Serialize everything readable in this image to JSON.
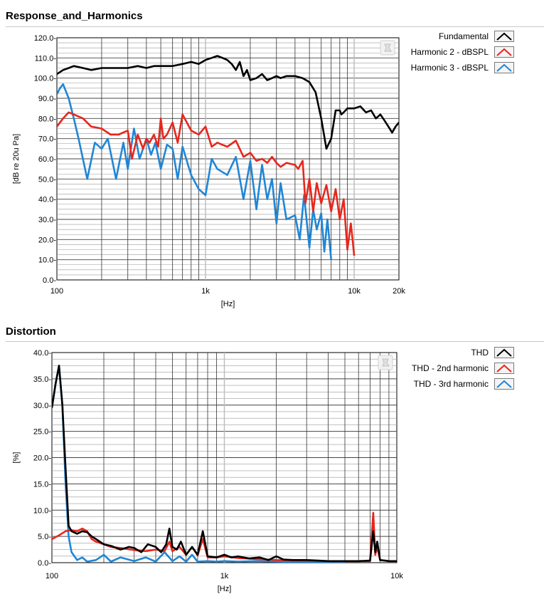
{
  "charts": [
    {
      "id": "response",
      "title": "Response_and_Harmonics",
      "ylabel": "[dB re 20u Pa]",
      "xlabel": "[Hz]",
      "legend": [
        {
          "label": "Fundamental",
          "color": "#000000"
        },
        {
          "label": "Harmonic 2 - dBSPL",
          "color": "#e8261c"
        },
        {
          "label": "Harmonic 3 - dBSPL",
          "color": "#1f86d6"
        }
      ]
    },
    {
      "id": "distortion",
      "title": "Distortion",
      "ylabel": "[%]",
      "xlabel": "[Hz]",
      "legend": [
        {
          "label": "THD",
          "color": "#000000"
        },
        {
          "label": "THD - 2nd harmonic",
          "color": "#e8261c"
        },
        {
          "label": "THD - 3rd harmonic",
          "color": "#1f86d6"
        }
      ]
    }
  ],
  "chart_data": [
    {
      "type": "line",
      "title": "Response_and_Harmonics",
      "xlabel": "[Hz]",
      "ylabel": "[dB re 20u Pa]",
      "x_scale": "log",
      "xlim": [
        100,
        20000
      ],
      "ylim": [
        0,
        120
      ],
      "x_ticks": [
        100,
        1000,
        10000,
        20000
      ],
      "x_tick_labels": [
        "100",
        "1k",
        "10k",
        "20k"
      ],
      "y_ticks": [
        0,
        10,
        20,
        30,
        40,
        50,
        60,
        70,
        80,
        90,
        100,
        110,
        120
      ],
      "y_tick_labels": [
        "0.0-",
        "10.0-",
        "20.0-",
        "30.0-",
        "40.0-",
        "50.0-",
        "60.0-",
        "70.0-",
        "80.0-",
        "90.0-",
        "100.0-",
        "110.0-",
        "120.0-"
      ],
      "grid": true,
      "legend_position": "right",
      "series": [
        {
          "name": "Fundamental",
          "color": "#000000",
          "x": [
            100,
            110,
            120,
            130,
            150,
            170,
            200,
            250,
            300,
            350,
            400,
            450,
            500,
            600,
            700,
            800,
            900,
            1000,
            1100,
            1200,
            1300,
            1400,
            1500,
            1600,
            1700,
            1800,
            1900,
            2000,
            2200,
            2400,
            2600,
            2800,
            3000,
            3200,
            3500,
            4000,
            4500,
            5000,
            5500,
            6000,
            6500,
            7000,
            7500,
            8000,
            8200,
            8500,
            9000,
            10000,
            11000,
            12000,
            13000,
            14000,
            15000,
            16000,
            17000,
            18000,
            19000,
            20000
          ],
          "y": [
            102,
            104,
            105,
            106,
            105,
            104,
            105,
            105,
            105,
            106,
            105,
            106,
            106,
            106,
            107,
            108,
            107,
            109,
            110,
            111,
            110,
            109,
            107,
            104,
            108,
            101,
            104,
            99,
            100,
            102,
            99,
            100,
            101,
            100,
            101,
            101,
            100,
            98,
            93,
            80,
            65,
            70,
            84,
            84,
            82,
            83,
            85,
            85,
            86,
            83,
            84,
            80,
            82,
            79,
            76,
            73,
            76,
            78
          ]
        },
        {
          "name": "Harmonic 2 - dBSPL",
          "color": "#e8261c",
          "x": [
            100,
            110,
            120,
            130,
            150,
            170,
            200,
            230,
            260,
            300,
            320,
            350,
            380,
            400,
            420,
            450,
            480,
            500,
            520,
            550,
            600,
            650,
            700,
            800,
            900,
            1000,
            1100,
            1200,
            1400,
            1600,
            1800,
            2000,
            2200,
            2400,
            2600,
            2800,
            3000,
            3200,
            3500,
            4000,
            4200,
            4500,
            4700,
            5000,
            5300,
            5600,
            6000,
            6500,
            7000,
            7500,
            8000,
            8500,
            9000,
            9500,
            10000
          ],
          "y": [
            76,
            80,
            83,
            82,
            80,
            76,
            75,
            72,
            72,
            74,
            60,
            72,
            65,
            70,
            68,
            72,
            66,
            80,
            70,
            72,
            78,
            68,
            82,
            74,
            72,
            76,
            66,
            68,
            66,
            69,
            61,
            63,
            59,
            60,
            58,
            61,
            58,
            56,
            58,
            57,
            55,
            59,
            38,
            50,
            34,
            48,
            38,
            47,
            34,
            45,
            30,
            40,
            15,
            28,
            12
          ]
        },
        {
          "name": "Harmonic 3 - dBSPL",
          "color": "#1f86d6",
          "x": [
            100,
            105,
            110,
            120,
            130,
            140,
            160,
            180,
            200,
            220,
            250,
            280,
            300,
            330,
            360,
            400,
            430,
            460,
            500,
            550,
            600,
            650,
            700,
            800,
            900,
            1000,
            1100,
            1200,
            1400,
            1600,
            1800,
            2000,
            2200,
            2400,
            2600,
            2800,
            3000,
            3200,
            3500,
            4000,
            4300,
            4600,
            5000,
            5300,
            5600,
            6000,
            6300,
            6600,
            7000
          ],
          "y": [
            92,
            95,
            97,
            90,
            80,
            70,
            50,
            68,
            65,
            70,
            50,
            68,
            55,
            75,
            60,
            70,
            62,
            68,
            55,
            67,
            65,
            50,
            66,
            52,
            45,
            42,
            60,
            55,
            52,
            61,
            40,
            59,
            35,
            57,
            40,
            50,
            28,
            48,
            30,
            32,
            20,
            42,
            16,
            35,
            25,
            33,
            14,
            30,
            10
          ]
        }
      ]
    },
    {
      "type": "line",
      "title": "Distortion",
      "xlabel": "[Hz]",
      "ylabel": "[%]",
      "x_scale": "log",
      "xlim": [
        100,
        10000
      ],
      "ylim": [
        0,
        40
      ],
      "x_ticks": [
        100,
        1000,
        10000
      ],
      "x_tick_labels": [
        "100",
        "1k",
        "10k"
      ],
      "y_ticks": [
        0,
        5,
        10,
        15,
        20,
        25,
        30,
        35,
        40
      ],
      "y_tick_labels": [
        "0.0-",
        "5.0-",
        "10.0-",
        "15.0-",
        "20.0-",
        "25.0-",
        "30.0-",
        "35.0-",
        "40.0-"
      ],
      "grid": true,
      "legend_position": "right",
      "series": [
        {
          "name": "THD",
          "color": "#000000",
          "x": [
            100,
            105,
            110,
            115,
            120,
            125,
            130,
            140,
            150,
            160,
            170,
            180,
            200,
            220,
            250,
            280,
            300,
            330,
            360,
            400,
            430,
            460,
            480,
            500,
            530,
            560,
            600,
            650,
            700,
            750,
            800,
            900,
            1000,
            1100,
            1200,
            1400,
            1600,
            1800,
            2000,
            2200,
            2500,
            3000,
            3500,
            4000,
            5000,
            6000,
            7000,
            7300,
            7500,
            7700,
            8000,
            8500,
            9000,
            10000
          ],
          "y": [
            29.5,
            34,
            37.5,
            30,
            18,
            7,
            6,
            5.5,
            6,
            5.8,
            5,
            4.5,
            3.5,
            3.2,
            2.5,
            3,
            2.8,
            2,
            3.5,
            3,
            2,
            3.5,
            6.5,
            3,
            2.5,
            4,
            1.5,
            3,
            1.5,
            6,
            1.2,
            1,
            1.5,
            1,
            1.2,
            0.8,
            1,
            0.5,
            1.2,
            0.6,
            0.5,
            0.5,
            0.4,
            0.3,
            0.3,
            0.3,
            0.4,
            6,
            2,
            4,
            0.5,
            0.4,
            0.3,
            0.3
          ]
        },
        {
          "name": "THD - 2nd harmonic",
          "color": "#e8261c",
          "x": [
            100,
            110,
            120,
            130,
            140,
            150,
            160,
            170,
            180,
            200,
            220,
            250,
            300,
            350,
            400,
            450,
            480,
            500,
            550,
            600,
            650,
            700,
            750,
            800,
            900,
            1000,
            1200,
            1500,
            2000,
            3000,
            4000,
            5000,
            6000,
            7000,
            7300,
            7500,
            7700,
            8000,
            9000,
            10000
          ],
          "y": [
            4.5,
            5.2,
            6,
            6.2,
            6,
            6.5,
            6,
            4.5,
            4,
            3.5,
            3,
            2.8,
            2.4,
            2.2,
            2.5,
            2.2,
            4,
            2.2,
            3,
            1.5,
            3,
            1.4,
            4.5,
            1,
            1,
            1.2,
            0.9,
            0.7,
            0.5,
            0.4,
            0.3,
            0.3,
            0.3,
            0.3,
            9.5,
            1.5,
            3,
            0.5,
            0.3,
            0.3
          ]
        },
        {
          "name": "THD - 3rd harmonic",
          "color": "#1f86d6",
          "x": [
            100,
            105,
            110,
            115,
            120,
            125,
            130,
            140,
            150,
            160,
            180,
            200,
            220,
            250,
            300,
            350,
            400,
            450,
            500,
            550,
            600,
            650,
            700,
            800,
            900,
            1000,
            1200,
            1500,
            2000,
            3000,
            4000,
            5000
          ],
          "y": [
            29.5,
            34,
            37.5,
            30,
            15,
            5,
            2,
            0.5,
            1,
            0.2,
            0.5,
            1.5,
            0.2,
            1,
            0.3,
            1,
            0.2,
            2,
            0.3,
            1.2,
            0.2,
            1.5,
            0.2,
            0.3,
            0.2,
            0.3,
            0.2,
            0.3,
            0.2,
            0.1,
            0.1,
            0.1
          ]
        }
      ]
    }
  ]
}
